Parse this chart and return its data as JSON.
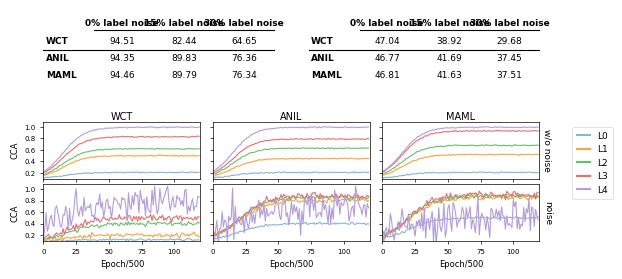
{
  "table1": {
    "headers": [
      "",
      "0% label noise",
      "15% label noise",
      "30% label noise"
    ],
    "rows": [
      [
        "WCT",
        "94.51",
        "82.44",
        "64.65"
      ],
      [
        "ANIL",
        "94.35",
        "89.83",
        "76.36"
      ],
      [
        "MAML",
        "94.46",
        "89.79",
        "76.34"
      ]
    ]
  },
  "table2": {
    "headers": [
      "",
      "0% label noise",
      "15% label noise",
      "30% label noise"
    ],
    "rows": [
      [
        "WCT",
        "47.04",
        "38.92",
        "29.68"
      ],
      [
        "ANIL",
        "46.77",
        "41.69",
        "37.45"
      ],
      [
        "MAML",
        "46.81",
        "41.63",
        "37.51"
      ]
    ]
  },
  "colors": {
    "L0": "#8ab4d4",
    "L1": "#f5a742",
    "L2": "#6abf69",
    "L3": "#e87070",
    "L4": "#b39ddb"
  },
  "col_titles": [
    "WCT",
    "ANIL",
    "MAML"
  ],
  "row_labels": [
    "w/o noise",
    "noise"
  ],
  "xlabel": "Epoch/500",
  "ylabel": "CCA",
  "legend_labels": [
    "L0",
    "L1",
    "L2",
    "L3",
    "L4"
  ],
  "yticks": [
    0.2,
    0.4,
    0.6,
    0.8,
    1.0
  ],
  "xticks": [
    0,
    25,
    50,
    75,
    100
  ]
}
